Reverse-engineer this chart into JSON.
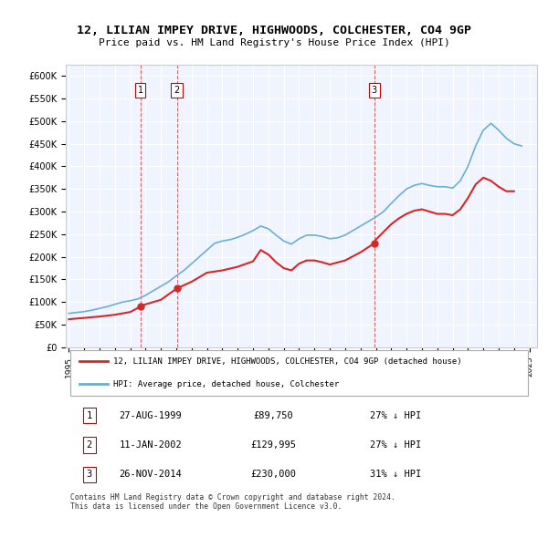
{
  "title": "12, LILIAN IMPEY DRIVE, HIGHWOODS, COLCHESTER, CO4 9GP",
  "subtitle": "Price paid vs. HM Land Registry's House Price Index (HPI)",
  "xlabel": "",
  "ylabel": "",
  "ylim": [
    0,
    625000
  ],
  "yticks": [
    0,
    50000,
    100000,
    150000,
    200000,
    250000,
    300000,
    350000,
    400000,
    450000,
    500000,
    550000,
    600000
  ],
  "ytick_labels": [
    "£0",
    "£50K",
    "£100K",
    "£150K",
    "£200K",
    "£250K",
    "£300K",
    "£350K",
    "£400K",
    "£450K",
    "£500K",
    "£550K",
    "£600K"
  ],
  "hpi_color": "#6baed6",
  "price_color": "#d62728",
  "marker_color": "#d62728",
  "bg_color": "#f0f4ff",
  "grid_color": "#ffffff",
  "vline_color": "#d62728",
  "sale_dates": [
    1999.65,
    2002.03,
    2014.9
  ],
  "sale_prices": [
    89750,
    129995,
    230000
  ],
  "sale_labels": [
    "1",
    "2",
    "3"
  ],
  "legend_label_price": "12, LILIAN IMPEY DRIVE, HIGHWOODS, COLCHESTER, CO4 9GP (detached house)",
  "legend_label_hpi": "HPI: Average price, detached house, Colchester",
  "table_data": [
    [
      "1",
      "27-AUG-1999",
      "£89,750",
      "27% ↓ HPI"
    ],
    [
      "2",
      "11-JAN-2002",
      "£129,995",
      "27% ↓ HPI"
    ],
    [
      "3",
      "26-NOV-2014",
      "£230,000",
      "31% ↓ HPI"
    ]
  ],
  "footer": "Contains HM Land Registry data © Crown copyright and database right 2024.\nThis data is licensed under the Open Government Licence v3.0.",
  "hpi_data": {
    "x": [
      1995.0,
      1995.5,
      1996.0,
      1996.5,
      1997.0,
      1997.5,
      1998.0,
      1998.5,
      1999.0,
      1999.5,
      2000.0,
      2000.5,
      2001.0,
      2001.5,
      2002.0,
      2002.5,
      2003.0,
      2003.5,
      2004.0,
      2004.5,
      2005.0,
      2005.5,
      2006.0,
      2006.5,
      2007.0,
      2007.5,
      2008.0,
      2008.5,
      2009.0,
      2009.5,
      2010.0,
      2010.5,
      2011.0,
      2011.5,
      2012.0,
      2012.5,
      2013.0,
      2013.5,
      2014.0,
      2014.5,
      2015.0,
      2015.5,
      2016.0,
      2016.5,
      2017.0,
      2017.5,
      2018.0,
      2018.5,
      2019.0,
      2019.5,
      2020.0,
      2020.5,
      2021.0,
      2021.5,
      2022.0,
      2022.5,
      2023.0,
      2023.5,
      2024.0,
      2024.5
    ],
    "y": [
      75000,
      77000,
      79000,
      82000,
      86000,
      90000,
      95000,
      100000,
      103000,
      107000,
      115000,
      125000,
      135000,
      145000,
      158000,
      170000,
      185000,
      200000,
      215000,
      230000,
      235000,
      238000,
      243000,
      250000,
      258000,
      268000,
      262000,
      248000,
      235000,
      228000,
      240000,
      248000,
      248000,
      245000,
      240000,
      242000,
      248000,
      258000,
      268000,
      278000,
      288000,
      300000,
      318000,
      335000,
      350000,
      358000,
      362000,
      358000,
      355000,
      355000,
      352000,
      368000,
      400000,
      445000,
      480000,
      495000,
      480000,
      462000,
      450000,
      445000
    ]
  },
  "price_data": {
    "x": [
      1995.0,
      1995.3,
      1996.0,
      1997.0,
      1997.5,
      1998.0,
      1998.5,
      1999.0,
      1999.65,
      2000.0,
      2001.0,
      2002.03,
      2003.0,
      2004.0,
      2005.0,
      2006.0,
      2007.0,
      2007.5,
      2008.0,
      2008.5,
      2009.0,
      2009.5,
      2010.0,
      2010.5,
      2011.0,
      2011.5,
      2012.0,
      2013.0,
      2014.0,
      2014.9,
      2015.0,
      2015.5,
      2016.0,
      2016.5,
      2017.0,
      2017.5,
      2018.0,
      2018.5,
      2019.0,
      2019.5,
      2020.0,
      2020.5,
      2021.0,
      2021.5,
      2022.0,
      2022.5,
      2023.0,
      2023.5,
      2024.0
    ],
    "y": [
      62000,
      63000,
      65000,
      68000,
      70000,
      72000,
      75000,
      78000,
      89750,
      95000,
      105000,
      129995,
      145000,
      165000,
      170000,
      178000,
      190000,
      215000,
      205000,
      188000,
      175000,
      170000,
      185000,
      192000,
      192000,
      188000,
      183000,
      192000,
      210000,
      230000,
      238000,
      255000,
      272000,
      285000,
      295000,
      302000,
      305000,
      300000,
      295000,
      295000,
      292000,
      305000,
      330000,
      360000,
      375000,
      368000,
      355000,
      345000,
      345000
    ]
  }
}
